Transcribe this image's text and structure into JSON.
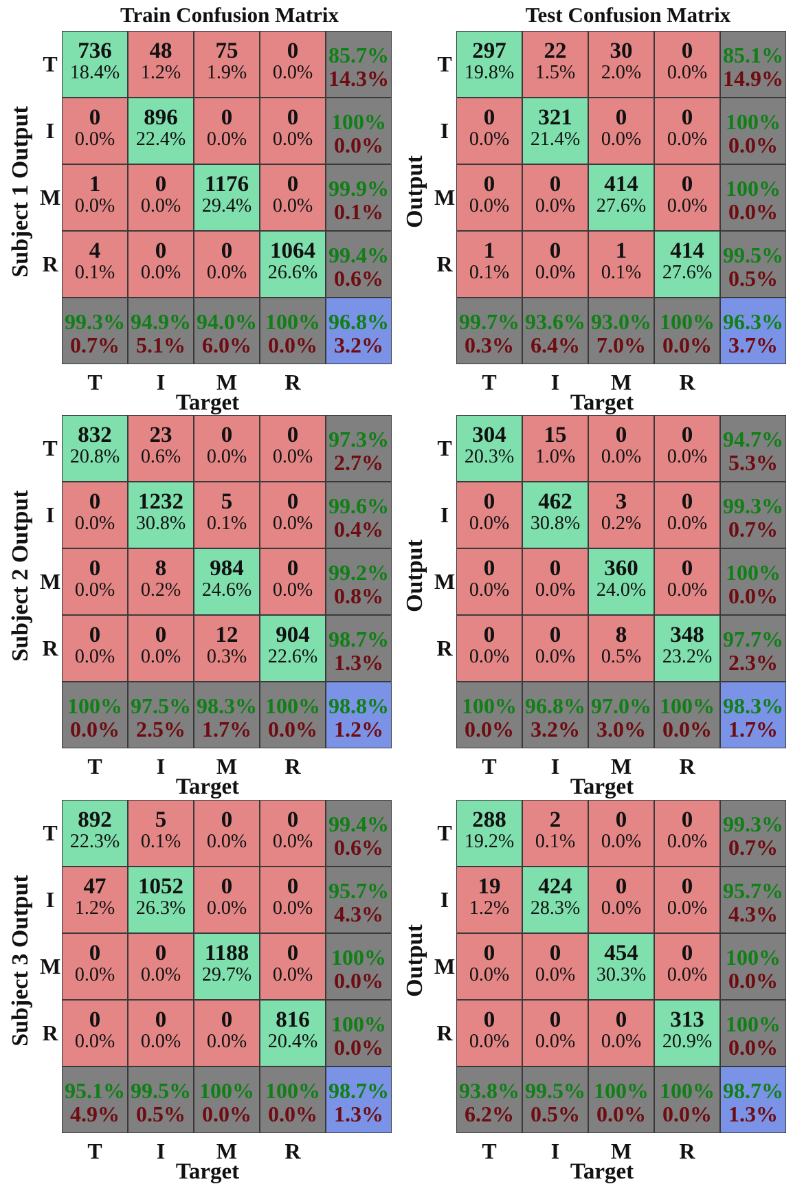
{
  "titles": {
    "train": "Train Confusion Matrix",
    "test": "Test Confusion Matrix"
  },
  "chart_data": [
    {
      "type": "table",
      "title": "Train Confusion Matrix",
      "ylabel": "Subject 1 Output",
      "xlabel": "Target",
      "classes": [
        "T",
        "I",
        "M",
        "R"
      ],
      "counts": [
        [
          736,
          48,
          75,
          0
        ],
        [
          0,
          896,
          0,
          0
        ],
        [
          1,
          0,
          1176,
          0
        ],
        [
          4,
          0,
          0,
          1064
        ]
      ],
      "percents": [
        [
          "18.4%",
          "1.2%",
          "1.9%",
          "0.0%"
        ],
        [
          "0.0%",
          "22.4%",
          "0.0%",
          "0.0%"
        ],
        [
          "0.0%",
          "0.0%",
          "29.4%",
          "0.0%"
        ],
        [
          "0.1%",
          "0.0%",
          "0.0%",
          "26.6%"
        ]
      ],
      "row_summary": [
        [
          "85.7%",
          "14.3%"
        ],
        [
          "100%",
          "0.0%"
        ],
        [
          "99.9%",
          "0.1%"
        ],
        [
          "99.4%",
          "0.6%"
        ]
      ],
      "col_summary": [
        [
          "99.3%",
          "0.7%"
        ],
        [
          "94.9%",
          "5.1%"
        ],
        [
          "94.0%",
          "6.0%"
        ],
        [
          "100%",
          "0.0%"
        ]
      ],
      "overall": [
        "96.8%",
        "3.2%"
      ]
    },
    {
      "type": "table",
      "title": "Test Confusion Matrix",
      "ylabel": "Output",
      "xlabel": "Target",
      "classes": [
        "T",
        "I",
        "M",
        "R"
      ],
      "counts": [
        [
          297,
          22,
          30,
          0
        ],
        [
          0,
          321,
          0,
          0
        ],
        [
          0,
          0,
          414,
          0
        ],
        [
          1,
          0,
          1,
          414
        ]
      ],
      "percents": [
        [
          "19.8%",
          "1.5%",
          "2.0%",
          "0.0%"
        ],
        [
          "0.0%",
          "21.4%",
          "0.0%",
          "0.0%"
        ],
        [
          "0.0%",
          "0.0%",
          "27.6%",
          "0.0%"
        ],
        [
          "0.1%",
          "0.0%",
          "0.1%",
          "27.6%"
        ]
      ],
      "row_summary": [
        [
          "85.1%",
          "14.9%"
        ],
        [
          "100%",
          "0.0%"
        ],
        [
          "100%",
          "0.0%"
        ],
        [
          "99.5%",
          "0.5%"
        ]
      ],
      "col_summary": [
        [
          "99.7%",
          "0.3%"
        ],
        [
          "93.6%",
          "6.4%"
        ],
        [
          "93.0%",
          "7.0%"
        ],
        [
          "100%",
          "0.0%"
        ]
      ],
      "overall": [
        "96.3%",
        "3.7%"
      ]
    },
    {
      "type": "table",
      "title": "",
      "ylabel": "Subject 2 Output",
      "xlabel": "Target",
      "classes": [
        "T",
        "I",
        "M",
        "R"
      ],
      "counts": [
        [
          832,
          23,
          0,
          0
        ],
        [
          0,
          1232,
          5,
          0
        ],
        [
          0,
          8,
          984,
          0
        ],
        [
          0,
          0,
          12,
          904
        ]
      ],
      "percents": [
        [
          "20.8%",
          "0.6%",
          "0.0%",
          "0.0%"
        ],
        [
          "0.0%",
          "30.8%",
          "0.1%",
          "0.0%"
        ],
        [
          "0.0%",
          "0.2%",
          "24.6%",
          "0.0%"
        ],
        [
          "0.0%",
          "0.0%",
          "0.3%",
          "22.6%"
        ]
      ],
      "row_summary": [
        [
          "97.3%",
          "2.7%"
        ],
        [
          "99.6%",
          "0.4%"
        ],
        [
          "99.2%",
          "0.8%"
        ],
        [
          "98.7%",
          "1.3%"
        ]
      ],
      "col_summary": [
        [
          "100%",
          "0.0%"
        ],
        [
          "97.5%",
          "2.5%"
        ],
        [
          "98.3%",
          "1.7%"
        ],
        [
          "100%",
          "0.0%"
        ]
      ],
      "overall": [
        "98.8%",
        "1.2%"
      ]
    },
    {
      "type": "table",
      "title": "",
      "ylabel": "Output",
      "xlabel": "Target",
      "classes": [
        "T",
        "I",
        "M",
        "R"
      ],
      "counts": [
        [
          304,
          15,
          0,
          0
        ],
        [
          0,
          462,
          3,
          0
        ],
        [
          0,
          0,
          360,
          0
        ],
        [
          0,
          0,
          8,
          348
        ]
      ],
      "percents": [
        [
          "20.3%",
          "1.0%",
          "0.0%",
          "0.0%"
        ],
        [
          "0.0%",
          "30.8%",
          "0.2%",
          "0.0%"
        ],
        [
          "0.0%",
          "0.0%",
          "24.0%",
          "0.0%"
        ],
        [
          "0.0%",
          "0.0%",
          "0.5%",
          "23.2%"
        ]
      ],
      "row_summary": [
        [
          "94.7%",
          "5.3%"
        ],
        [
          "99.3%",
          "0.7%"
        ],
        [
          "100%",
          "0.0%"
        ],
        [
          "97.7%",
          "2.3%"
        ]
      ],
      "col_summary": [
        [
          "100%",
          "0.0%"
        ],
        [
          "96.8%",
          "3.2%"
        ],
        [
          "97.0%",
          "3.0%"
        ],
        [
          "100%",
          "0.0%"
        ]
      ],
      "overall": [
        "98.3%",
        "1.7%"
      ]
    },
    {
      "type": "table",
      "title": "",
      "ylabel": "Subject 3 Output",
      "xlabel": "Target",
      "classes": [
        "T",
        "I",
        "M",
        "R"
      ],
      "counts": [
        [
          892,
          5,
          0,
          0
        ],
        [
          47,
          1052,
          0,
          0
        ],
        [
          0,
          0,
          1188,
          0
        ],
        [
          0,
          0,
          0,
          816
        ]
      ],
      "percents": [
        [
          "22.3%",
          "0.1%",
          "0.0%",
          "0.0%"
        ],
        [
          "1.2%",
          "26.3%",
          "0.0%",
          "0.0%"
        ],
        [
          "0.0%",
          "0.0%",
          "29.7%",
          "0.0%"
        ],
        [
          "0.0%",
          "0.0%",
          "0.0%",
          "20.4%"
        ]
      ],
      "row_summary": [
        [
          "99.4%",
          "0.6%"
        ],
        [
          "95.7%",
          "4.3%"
        ],
        [
          "100%",
          "0.0%"
        ],
        [
          "100%",
          "0.0%"
        ]
      ],
      "col_summary": [
        [
          "95.1%",
          "4.9%"
        ],
        [
          "99.5%",
          "0.5%"
        ],
        [
          "100%",
          "0.0%"
        ],
        [
          "100%",
          "0.0%"
        ]
      ],
      "overall": [
        "98.7%",
        "1.3%"
      ]
    },
    {
      "type": "table",
      "title": "",
      "ylabel": "Output",
      "xlabel": "Target",
      "classes": [
        "T",
        "I",
        "M",
        "R"
      ],
      "counts": [
        [
          288,
          2,
          0,
          0
        ],
        [
          19,
          424,
          0,
          0
        ],
        [
          0,
          0,
          454,
          0
        ],
        [
          0,
          0,
          0,
          313
        ]
      ],
      "percents": [
        [
          "19.2%",
          "0.1%",
          "0.0%",
          "0.0%"
        ],
        [
          "1.2%",
          "28.3%",
          "0.0%",
          "0.0%"
        ],
        [
          "0.0%",
          "0.0%",
          "30.3%",
          "0.0%"
        ],
        [
          "0.0%",
          "0.0%",
          "0.0%",
          "20.9%"
        ]
      ],
      "row_summary": [
        [
          "99.3%",
          "0.7%"
        ],
        [
          "95.7%",
          "4.3%"
        ],
        [
          "100%",
          "0.0%"
        ],
        [
          "100%",
          "0.0%"
        ]
      ],
      "col_summary": [
        [
          "93.8%",
          "6.2%"
        ],
        [
          "99.5%",
          "0.5%"
        ],
        [
          "100%",
          "0.0%"
        ],
        [
          "100%",
          "0.0%"
        ]
      ],
      "overall": [
        "98.7%",
        "1.3%"
      ]
    }
  ]
}
